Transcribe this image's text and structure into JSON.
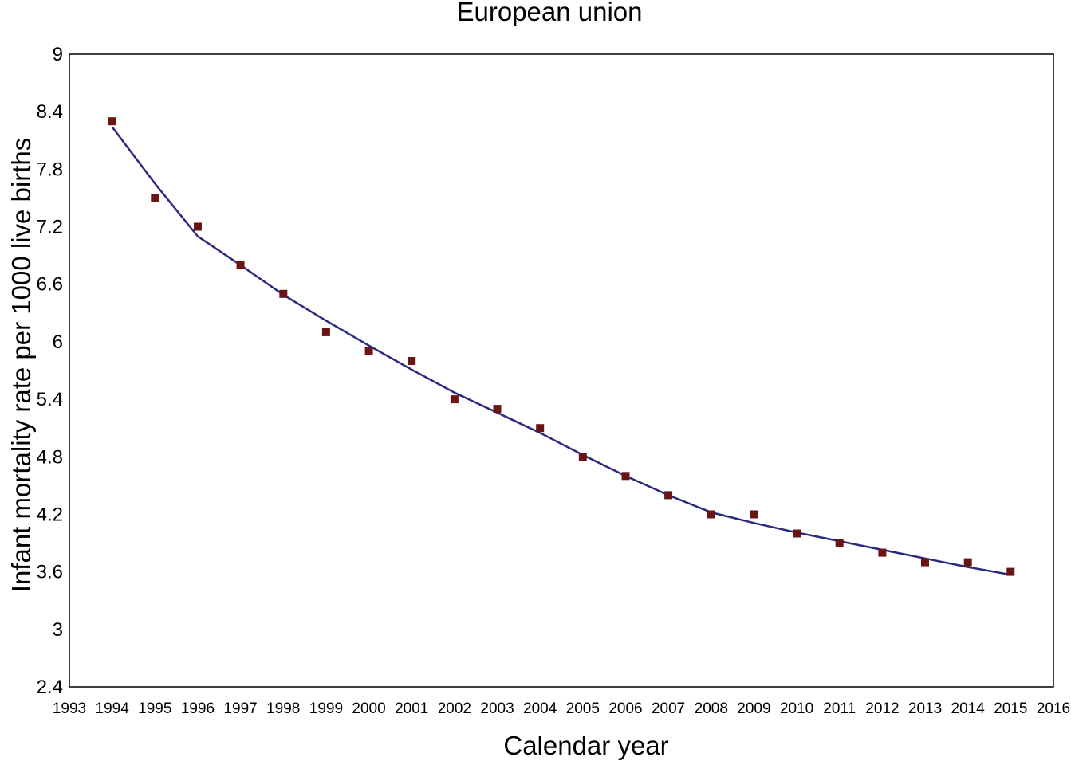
{
  "chart_data": {
    "type": "scatter",
    "title": "European union",
    "xlabel": "Calendar year",
    "ylabel": "Infant mortality rate per 1000 live births",
    "xlim": [
      1993,
      2016
    ],
    "ylim": [
      2.4,
      9
    ],
    "x_ticks": [
      "1993",
      "1994",
      "1995",
      "1996",
      "1997",
      "1998",
      "1999",
      "2000",
      "2001",
      "2002",
      "2003",
      "2004",
      "2005",
      "2006",
      "2007",
      "2008",
      "2009",
      "2010",
      "2011",
      "2012",
      "2013",
      "2014",
      "2015",
      "2016"
    ],
    "y_ticks": [
      "9",
      "8.4",
      "7.8",
      "7.2",
      "6.6",
      "6",
      "5.4",
      "4.8",
      "4.2",
      "3.6",
      "3",
      "2.4"
    ],
    "grid": false,
    "legend": "none",
    "colors": {
      "points": "#6b1414",
      "line": "#2a2a7e"
    },
    "series": [
      {
        "kind": "points",
        "x": [
          1994,
          1995,
          1996,
          1997,
          1998,
          1999,
          2000,
          2001,
          2002,
          2003,
          2004,
          2005,
          2006,
          2007,
          2008,
          2009,
          2010,
          2011,
          2012,
          2013,
          2014,
          2015
        ],
        "values": [
          8.3,
          7.5,
          7.2,
          6.8,
          6.5,
          6.1,
          5.9,
          5.8,
          5.4,
          5.3,
          5.1,
          4.8,
          4.6,
          4.4,
          4.2,
          4.2,
          4.0,
          3.9,
          3.8,
          3.7,
          3.7,
          3.6
        ]
      },
      {
        "kind": "fitted-line",
        "x": [
          1994,
          1995,
          1996,
          1997,
          1998,
          1999,
          2000,
          2001,
          2002,
          2003,
          2004,
          2005,
          2006,
          2007,
          2008,
          2009,
          2010,
          2011,
          2012,
          2013,
          2014,
          2015
        ],
        "values": [
          8.24,
          7.65,
          7.1,
          6.8,
          6.49,
          6.22,
          5.96,
          5.71,
          5.47,
          5.26,
          5.05,
          4.82,
          4.6,
          4.4,
          4.22,
          4.11,
          4.01,
          3.92,
          3.83,
          3.74,
          3.65,
          3.57
        ]
      }
    ]
  }
}
